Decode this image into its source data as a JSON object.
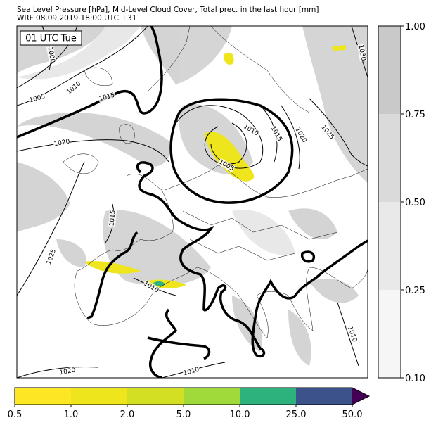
{
  "header": {
    "title": "Sea Level Pressure [hPa], Mid-Level Cloud Cover, Total prec. in the last hour [mm]",
    "subtitle": "WRF 08.09.2019 18:00 UTC +31"
  },
  "map": {
    "time_label": "01 UTC Tue",
    "isobar_labels": [
      "1000",
      "1005",
      "1010",
      "1015",
      "1020",
      "1010",
      "1015",
      "1020",
      "1025",
      "1030",
      "1005",
      "1015",
      "1025",
      "1010",
      "1010",
      "1020",
      "1010"
    ]
  },
  "cloud_colorbar": {
    "ticks": [
      "0.10",
      "0.25",
      "0.50",
      "0.75",
      "1.00"
    ],
    "colors": [
      "#f6f6f6",
      "#e9e9e9",
      "#dadada",
      "#c9c9c9"
    ]
  },
  "precip_colorbar": {
    "ticks": [
      "0.5",
      "1.0",
      "2.0",
      "5.0",
      "10.0",
      "25.0",
      "50.0"
    ],
    "colors": [
      "#fde725",
      "#eee51c",
      "#d3df22",
      "#9fda3a",
      "#2db27d",
      "#3b528b"
    ],
    "extend_color": "#440154"
  }
}
